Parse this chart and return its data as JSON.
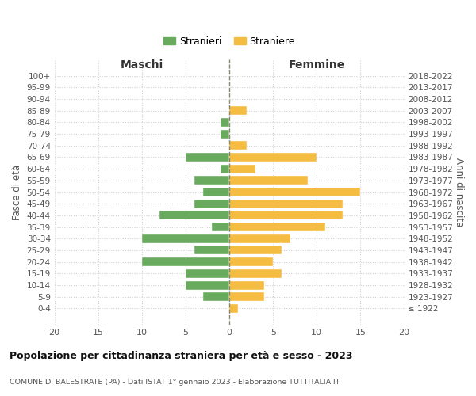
{
  "age_groups": [
    "100+",
    "95-99",
    "90-94",
    "85-89",
    "80-84",
    "75-79",
    "70-74",
    "65-69",
    "60-64",
    "55-59",
    "50-54",
    "45-49",
    "40-44",
    "35-39",
    "30-34",
    "25-29",
    "20-24",
    "15-19",
    "10-14",
    "5-9",
    "0-4"
  ],
  "birth_years": [
    "≤ 1922",
    "1923-1927",
    "1928-1932",
    "1933-1937",
    "1938-1942",
    "1943-1947",
    "1948-1952",
    "1953-1957",
    "1958-1962",
    "1963-1967",
    "1968-1972",
    "1973-1977",
    "1978-1982",
    "1983-1987",
    "1988-1992",
    "1993-1997",
    "1998-2002",
    "2003-2007",
    "2008-2012",
    "2013-2017",
    "2018-2022"
  ],
  "males": [
    0,
    0,
    0,
    0,
    1,
    1,
    0,
    5,
    1,
    4,
    3,
    4,
    8,
    2,
    10,
    4,
    10,
    5,
    5,
    3,
    0
  ],
  "females": [
    0,
    0,
    0,
    2,
    0,
    0,
    2,
    10,
    3,
    9,
    15,
    13,
    13,
    11,
    7,
    6,
    5,
    6,
    4,
    4,
    1
  ],
  "male_color": "#6aaa5e",
  "female_color": "#f5bc42",
  "grid_color": "#d0d0d0",
  "center_line_color": "#888870",
  "xlim": 20,
  "title": "Popolazione per cittadinanza straniera per età e sesso - 2023",
  "subtitle": "COMUNE DI BALESTRATE (PA) - Dati ISTAT 1° gennaio 2023 - Elaborazione TUTTITALIA.IT",
  "xlabel_left": "Maschi",
  "xlabel_right": "Femmine",
  "ylabel_left": "Fasce di età",
  "ylabel_right": "Anni di nascita",
  "legend_stranieri": "Stranieri",
  "legend_straniere": "Straniere"
}
